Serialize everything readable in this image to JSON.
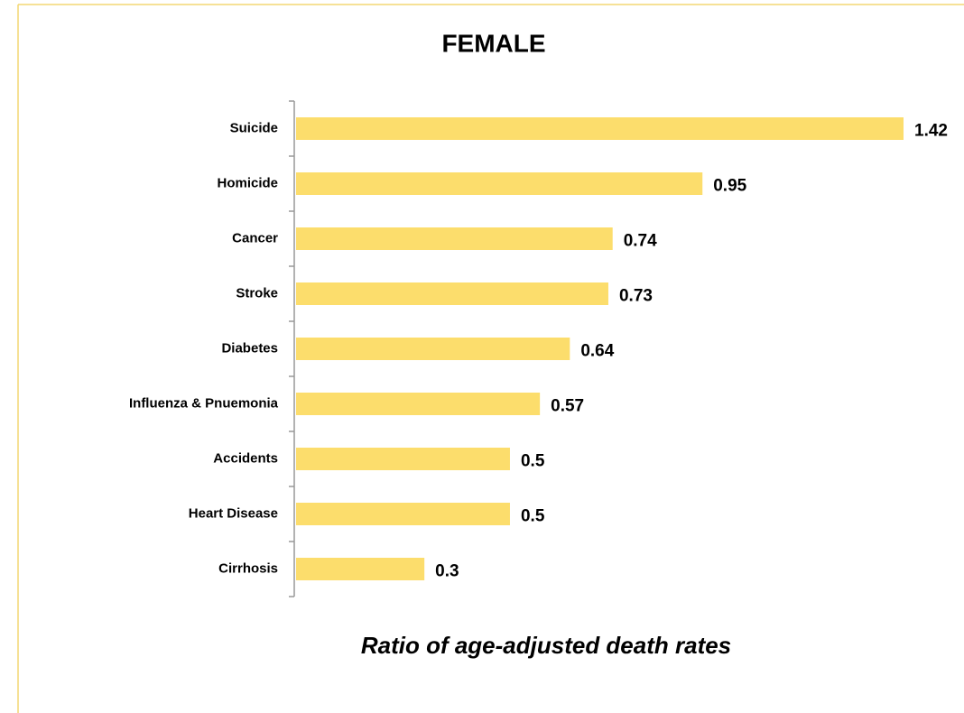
{
  "chart_data": {
    "type": "bar",
    "orientation": "horizontal",
    "title": "FEMALE",
    "x_label": "Ratio of age-adjusted death rates",
    "categories": [
      "Suicide",
      "Homicide",
      "Cancer",
      "Stroke",
      "Diabetes",
      "Influenza & Pnuemonia",
      "Accidents",
      "Heart Disease",
      "Cirrhosis"
    ],
    "values": [
      1.42,
      0.95,
      0.74,
      0.73,
      0.64,
      0.57,
      0.5,
      0.5,
      0.3
    ],
    "color": "#fcdd6c"
  }
}
